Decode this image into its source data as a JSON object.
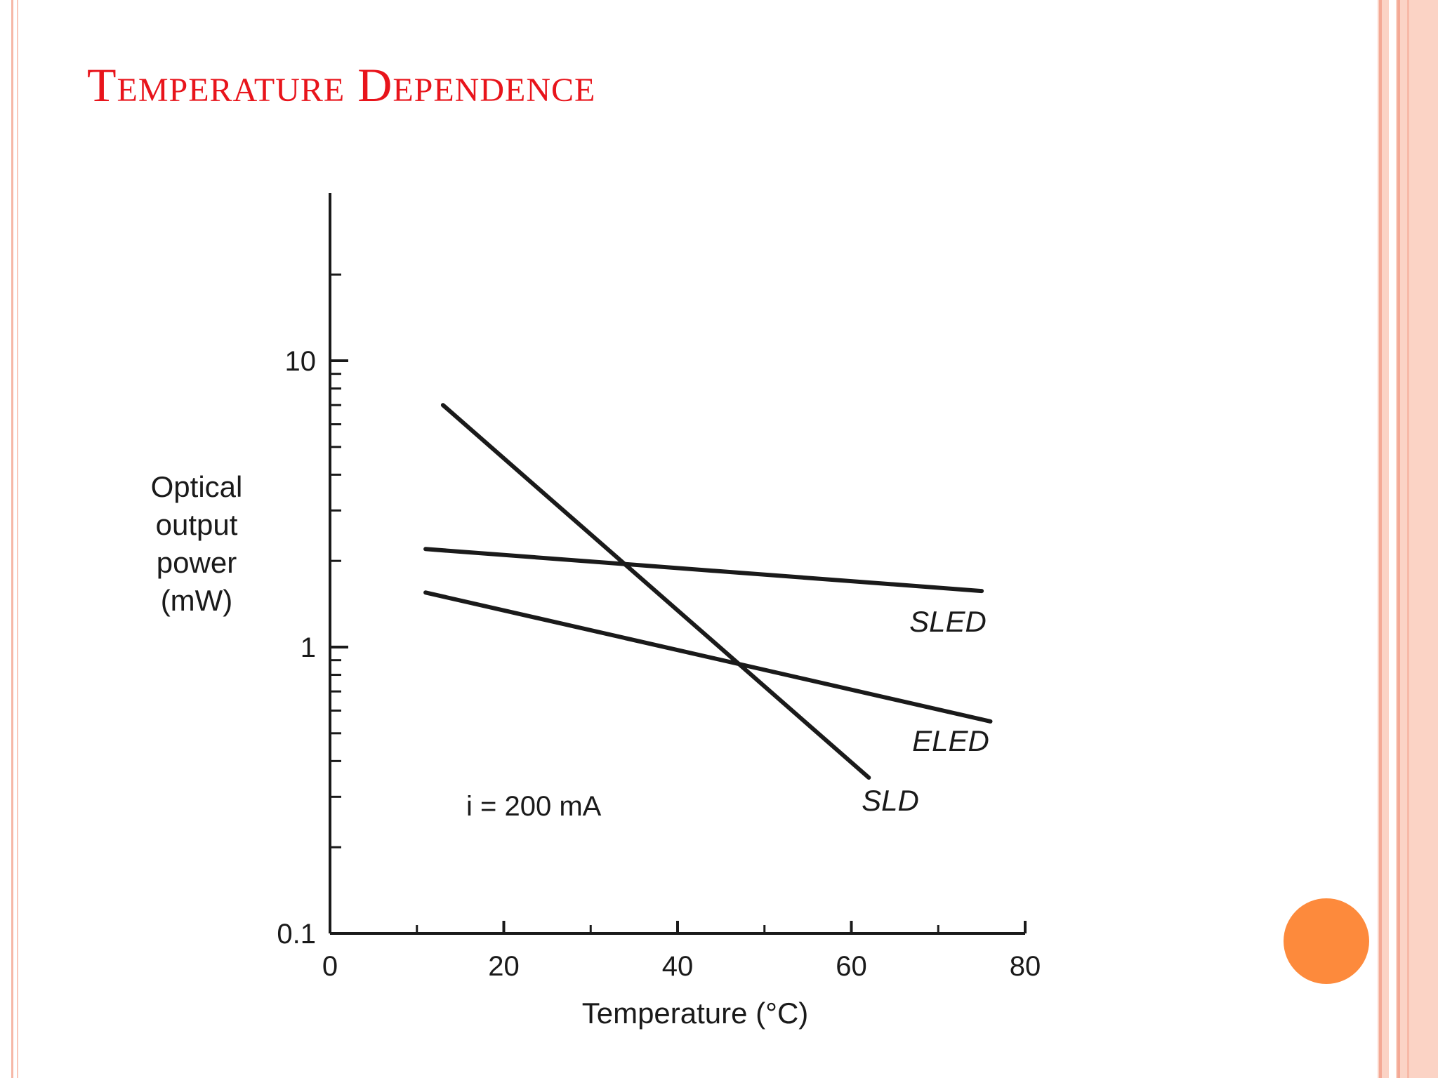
{
  "slide": {
    "title": "Temperature Dependence",
    "colors": {
      "title": "#e8141b",
      "accent_dot": "#fd8a3c",
      "frame": "#f4a995",
      "ink": "#1a1a1a"
    }
  },
  "chart_data": {
    "type": "line",
    "title": "",
    "xlabel": "Temperature (°C)",
    "ylabel_lines": [
      "Optical",
      "output",
      "power",
      "(mW)"
    ],
    "xlim": [
      0,
      80
    ],
    "ylim": [
      0.1,
      30
    ],
    "yscale": "log",
    "grid": false,
    "x_ticks": [
      {
        "value": 0,
        "label": "0"
      },
      {
        "value": 20,
        "label": "20"
      },
      {
        "value": 40,
        "label": "40"
      },
      {
        "value": 60,
        "label": "60"
      },
      {
        "value": 80,
        "label": "80"
      }
    ],
    "x_minor_ticks": [
      10,
      30,
      50,
      70
    ],
    "y_ticks": [
      {
        "value": 0.1,
        "label": "0.1"
      },
      {
        "value": 1,
        "label": "1"
      },
      {
        "value": 10,
        "label": "10"
      }
    ],
    "y_minor_ticks": [
      0.2,
      0.3,
      0.4,
      0.5,
      0.6,
      0.7,
      0.8,
      0.9,
      2,
      3,
      4,
      5,
      6,
      7,
      8,
      9,
      20
    ],
    "annotation": "i = 200 mA",
    "series": [
      {
        "name": "SLED",
        "x": [
          11,
          75
        ],
        "y": [
          2.2,
          1.57
        ]
      },
      {
        "name": "ELED",
        "x": [
          11,
          76
        ],
        "y": [
          1.55,
          0.55
        ]
      },
      {
        "name": "SLD",
        "x": [
          13,
          62
        ],
        "y": [
          7.0,
          0.35
        ]
      }
    ]
  }
}
